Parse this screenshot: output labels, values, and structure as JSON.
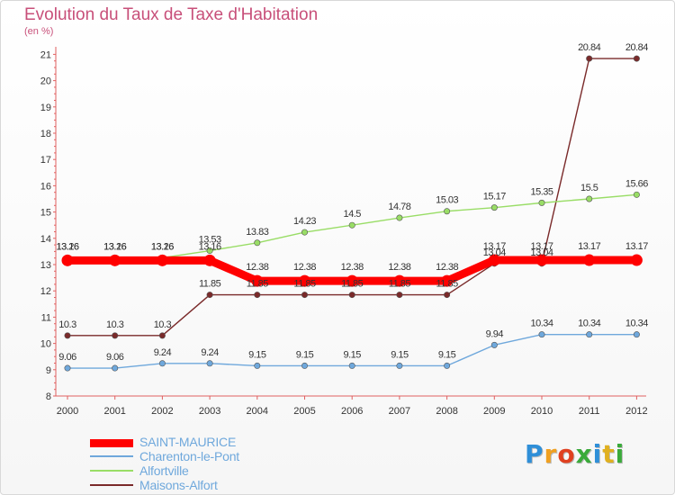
{
  "header": {
    "title": "Evolution du Taux de Taxe d'Habitation",
    "subtitle": "(en %)"
  },
  "brand": {
    "letters": [
      "P",
      "r",
      "o",
      "x",
      "i",
      "t",
      "i"
    ],
    "colors": [
      "#2f8fd8",
      "#f0a020",
      "#e04020",
      "#3aaa3a",
      "#2f8fd8",
      "#e0b020",
      "#3aaa3a"
    ]
  },
  "chart_data": {
    "type": "line",
    "x": [
      "2000",
      "2001",
      "2002",
      "2003",
      "2004",
      "2005",
      "2006",
      "2007",
      "2008",
      "2009",
      "2010",
      "2011",
      "2012"
    ],
    "ylim": [
      8,
      21
    ],
    "yticks": [
      "8",
      "9",
      "10",
      "11",
      "12",
      "13",
      "14",
      "15",
      "16",
      "17",
      "18",
      "19",
      "20",
      "21"
    ],
    "grid": false,
    "legend_position": "bottom-left",
    "series": [
      {
        "name": "Maisons-Alfort",
        "color": "#7a2a2a",
        "values": [
          10.3,
          10.3,
          10.3,
          11.85,
          11.85,
          11.85,
          11.85,
          11.85,
          11.85,
          13.04,
          13.04,
          20.84,
          20.84
        ],
        "labels": [
          "10.3",
          "10.3",
          "10.3",
          "11.85",
          "11.85",
          "11.85",
          "11.85",
          "11.85",
          "11.85",
          "13.04",
          "13.04",
          "20.84",
          "20.84"
        ]
      },
      {
        "name": "Alfortville",
        "color": "#99dd66",
        "values": [
          13.26,
          13.26,
          13.26,
          13.53,
          13.83,
          14.23,
          14.5,
          14.78,
          15.03,
          15.17,
          15.35,
          15.5,
          15.66
        ],
        "labels": [
          "13.26",
          "13.26",
          "13.26",
          "13.53",
          "13.83",
          "14.23",
          "14.5",
          "14.78",
          "15.03",
          "15.17",
          "15.35",
          "15.5",
          "15.66"
        ]
      },
      {
        "name": "Charenton-le-Pont",
        "color": "#6fa8dc",
        "values": [
          9.06,
          9.06,
          9.24,
          9.24,
          9.15,
          9.15,
          9.15,
          9.15,
          9.15,
          9.94,
          10.34,
          10.34,
          10.34
        ],
        "labels": [
          "9.06",
          "9.06",
          "9.24",
          "9.24",
          "9.15",
          "9.15",
          "9.15",
          "9.15",
          "9.15",
          "9.94",
          "10.34",
          "10.34",
          "10.34"
        ]
      },
      {
        "name": "SAINT-MAURICE",
        "color": "#ff0000",
        "values": [
          13.16,
          13.16,
          13.16,
          13.16,
          12.38,
          12.38,
          12.38,
          12.38,
          12.38,
          13.17,
          13.17,
          13.17,
          13.17
        ],
        "labels": [
          "13.16",
          "13.16",
          "13.16",
          "13.16",
          "12.38",
          "12.38",
          "12.38",
          "12.38",
          "12.38",
          "13.17",
          "13.17",
          "13.17",
          "13.17"
        ]
      }
    ]
  }
}
